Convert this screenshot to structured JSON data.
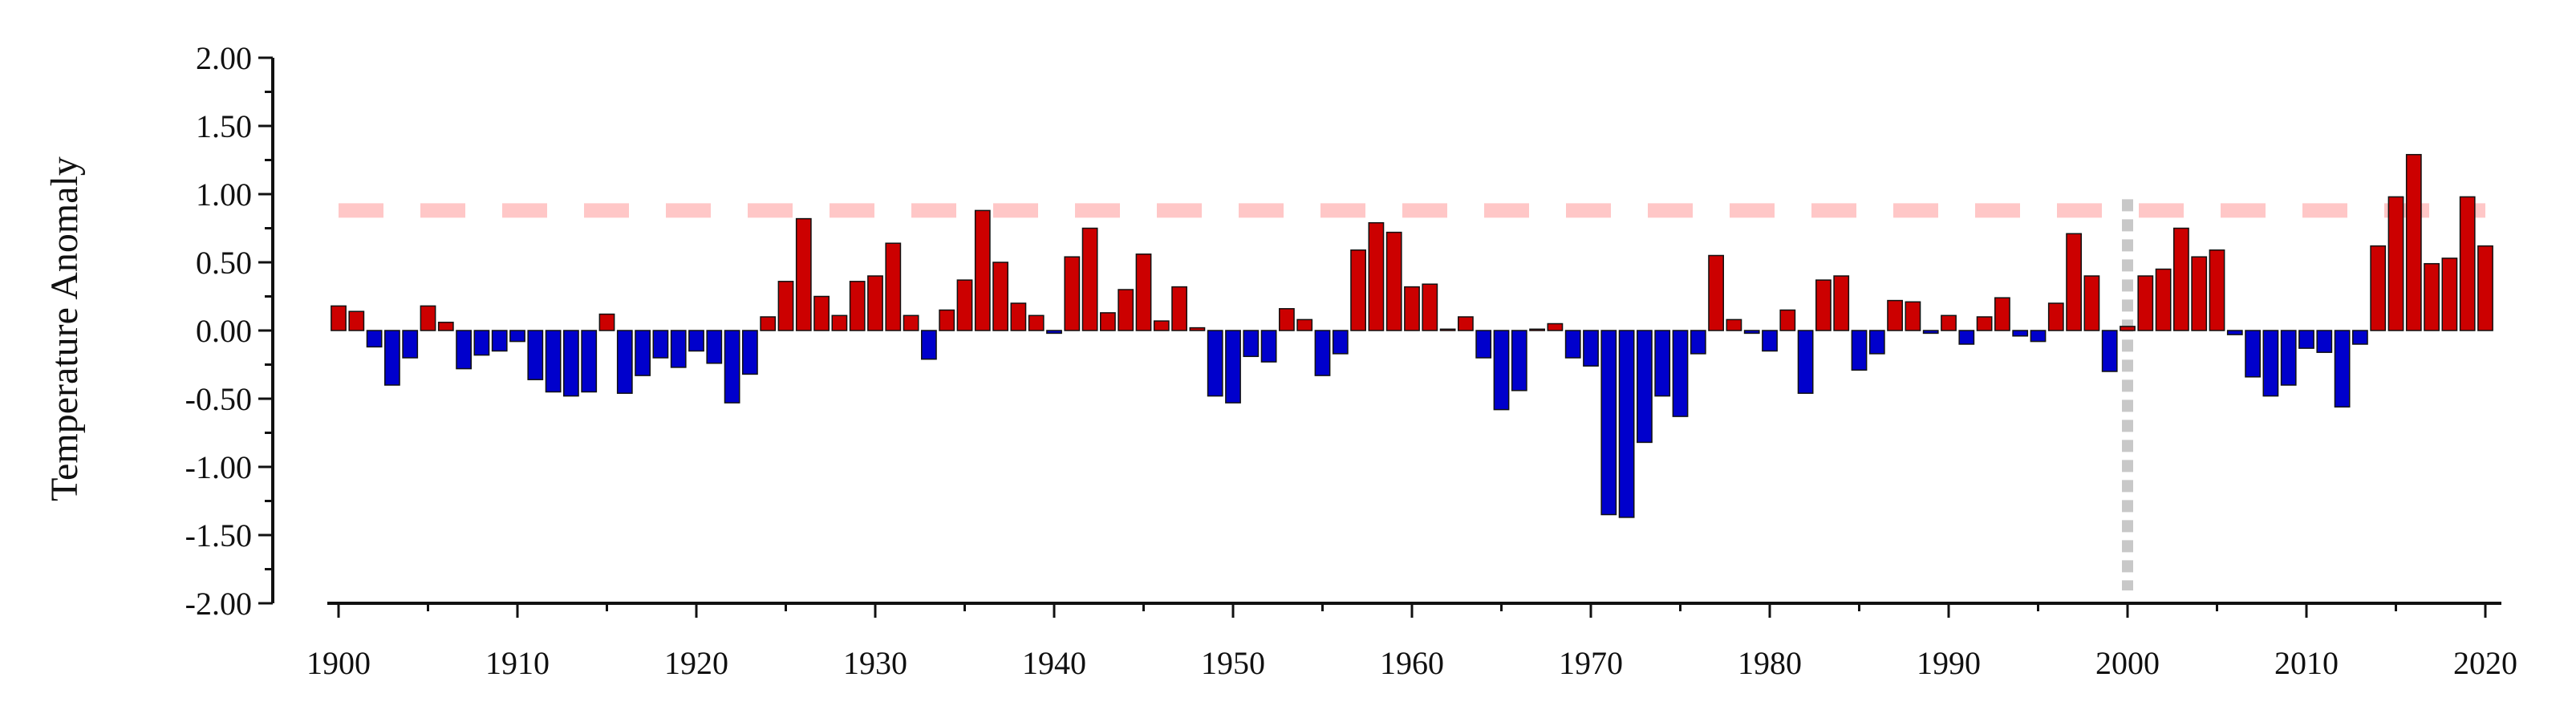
{
  "chart_data": {
    "type": "bar",
    "ylabel": "Temperature Anomaly",
    "ylim": [
      -2.0,
      2.0
    ],
    "xlim": [
      1900,
      2020
    ],
    "y_ticks": [
      -2.0,
      -1.5,
      -1.0,
      -0.5,
      0.0,
      0.5,
      1.0,
      1.5,
      2.0
    ],
    "y_tick_labels": [
      "-2.00",
      "-1.50",
      "-1.00",
      "-0.50",
      "0.00",
      "0.50",
      "1.00",
      "1.50",
      "2.00"
    ],
    "x_ticks": [
      1900,
      1910,
      1920,
      1930,
      1940,
      1950,
      1960,
      1970,
      1980,
      1990,
      2000,
      2010,
      2020
    ],
    "x_tick_labels": [
      "1900",
      "1910",
      "1920",
      "1930",
      "1940",
      "1950",
      "1960",
      "1970",
      "1980",
      "1990",
      "2000",
      "2010",
      "2020"
    ],
    "positive_color": "#cc0000",
    "negative_color": "#0000cc",
    "reference_line": {
      "y": 0.88,
      "color": "#ffc7c7",
      "style": "dashed"
    },
    "marker_line": {
      "x": 2000,
      "color": "#c8c8c8",
      "style": "dotted"
    },
    "grid": false,
    "years": [
      1900,
      1901,
      1902,
      1903,
      1904,
      1905,
      1906,
      1907,
      1908,
      1909,
      1910,
      1911,
      1912,
      1913,
      1914,
      1915,
      1916,
      1917,
      1918,
      1919,
      1920,
      1921,
      1922,
      1923,
      1924,
      1925,
      1926,
      1927,
      1928,
      1929,
      1930,
      1931,
      1932,
      1933,
      1934,
      1935,
      1936,
      1937,
      1938,
      1939,
      1940,
      1941,
      1942,
      1943,
      1944,
      1945,
      1946,
      1947,
      1948,
      1949,
      1950,
      1951,
      1952,
      1953,
      1954,
      1955,
      1956,
      1957,
      1958,
      1959,
      1960,
      1961,
      1962,
      1963,
      1964,
      1965,
      1966,
      1967,
      1968,
      1969,
      1970,
      1971,
      1972,
      1973,
      1974,
      1975,
      1976,
      1977,
      1978,
      1979,
      1980,
      1981,
      1982,
      1983,
      1984,
      1985,
      1986,
      1987,
      1988,
      1989,
      1990,
      1991,
      1992,
      1993,
      1994,
      1995,
      1996,
      1997,
      1998,
      1999,
      2000,
      2001,
      2002,
      2003,
      2004,
      2005,
      2006,
      2007,
      2008,
      2009,
      2010,
      2011,
      2012,
      2013,
      2014,
      2015,
      2016,
      2017,
      2018,
      2019,
      2020
    ],
    "values": [
      0.18,
      0.14,
      -0.12,
      -0.4,
      -0.2,
      0.18,
      0.06,
      -0.28,
      -0.18,
      -0.15,
      -0.08,
      -0.36,
      -0.45,
      -0.48,
      -0.45,
      0.12,
      -0.46,
      -0.33,
      -0.2,
      -0.27,
      -0.15,
      -0.24,
      -0.53,
      -0.32,
      0.1,
      0.36,
      0.82,
      0.25,
      0.11,
      0.36,
      0.4,
      0.64,
      0.11,
      -0.21,
      0.15,
      0.37,
      0.88,
      0.5,
      0.2,
      0.11,
      -0.02,
      0.54,
      0.75,
      0.13,
      0.3,
      0.56,
      0.07,
      0.32,
      0.02,
      -0.48,
      -0.53,
      -0.19,
      -0.23,
      0.16,
      0.08,
      -0.33,
      -0.17,
      0.59,
      0.79,
      0.72,
      0.32,
      0.34,
      0.01,
      0.1,
      -0.2,
      -0.58,
      -0.44,
      0.01,
      0.05,
      -0.2,
      -0.26,
      -1.35,
      -1.37,
      -0.82,
      -0.48,
      -0.63,
      -0.17,
      0.55,
      0.08,
      -0.02,
      -0.15,
      0.15,
      -0.46,
      0.37,
      0.4,
      -0.29,
      -0.17,
      0.22,
      0.21,
      -0.02,
      0.11,
      -0.1,
      0.1,
      0.24,
      -0.04,
      -0.08,
      0.2,
      0.71,
      0.4,
      -0.3,
      0.03,
      0.4,
      0.45,
      0.75,
      0.54,
      0.59,
      -0.03,
      -0.34,
      -0.48,
      -0.4,
      -0.13,
      -0.16,
      -0.56,
      -0.1,
      0.62,
      0.98,
      1.29,
      0.49,
      0.53,
      0.98,
      0.62
    ]
  }
}
